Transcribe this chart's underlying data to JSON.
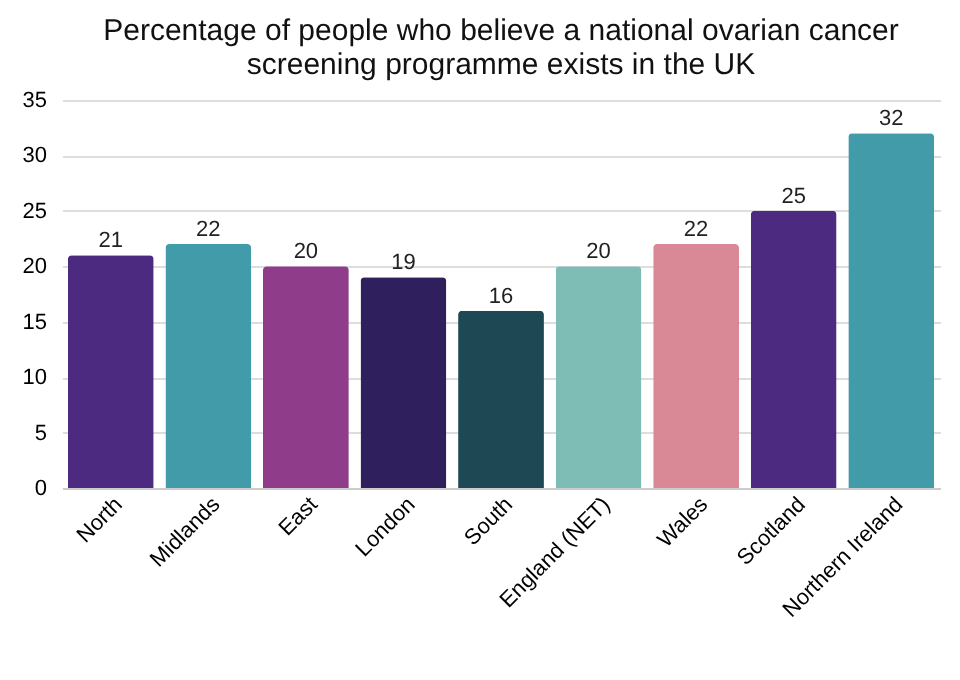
{
  "chart_data": {
    "type": "bar",
    "title": "Percentage of people who believe a national ovarian cancer screening programme exists in the UK",
    "categories": [
      "North",
      "Midlands",
      "East",
      "London",
      "South",
      "England (NET)",
      "Wales",
      "Scotland",
      "Northern Ireland"
    ],
    "values": [
      21,
      22,
      20,
      19,
      16,
      20,
      22,
      25,
      32
    ],
    "colors": [
      "#4c2a80",
      "#429ba9",
      "#8f3d8b",
      "#2f1f5c",
      "#1e4853",
      "#7dbdb6",
      "#d98995",
      "#4c2a80",
      "#429ba9"
    ],
    "ylim": [
      0,
      35
    ],
    "yticks": [
      0,
      5,
      10,
      15,
      20,
      25,
      30,
      35
    ],
    "grid": "y",
    "data_labels": true
  }
}
